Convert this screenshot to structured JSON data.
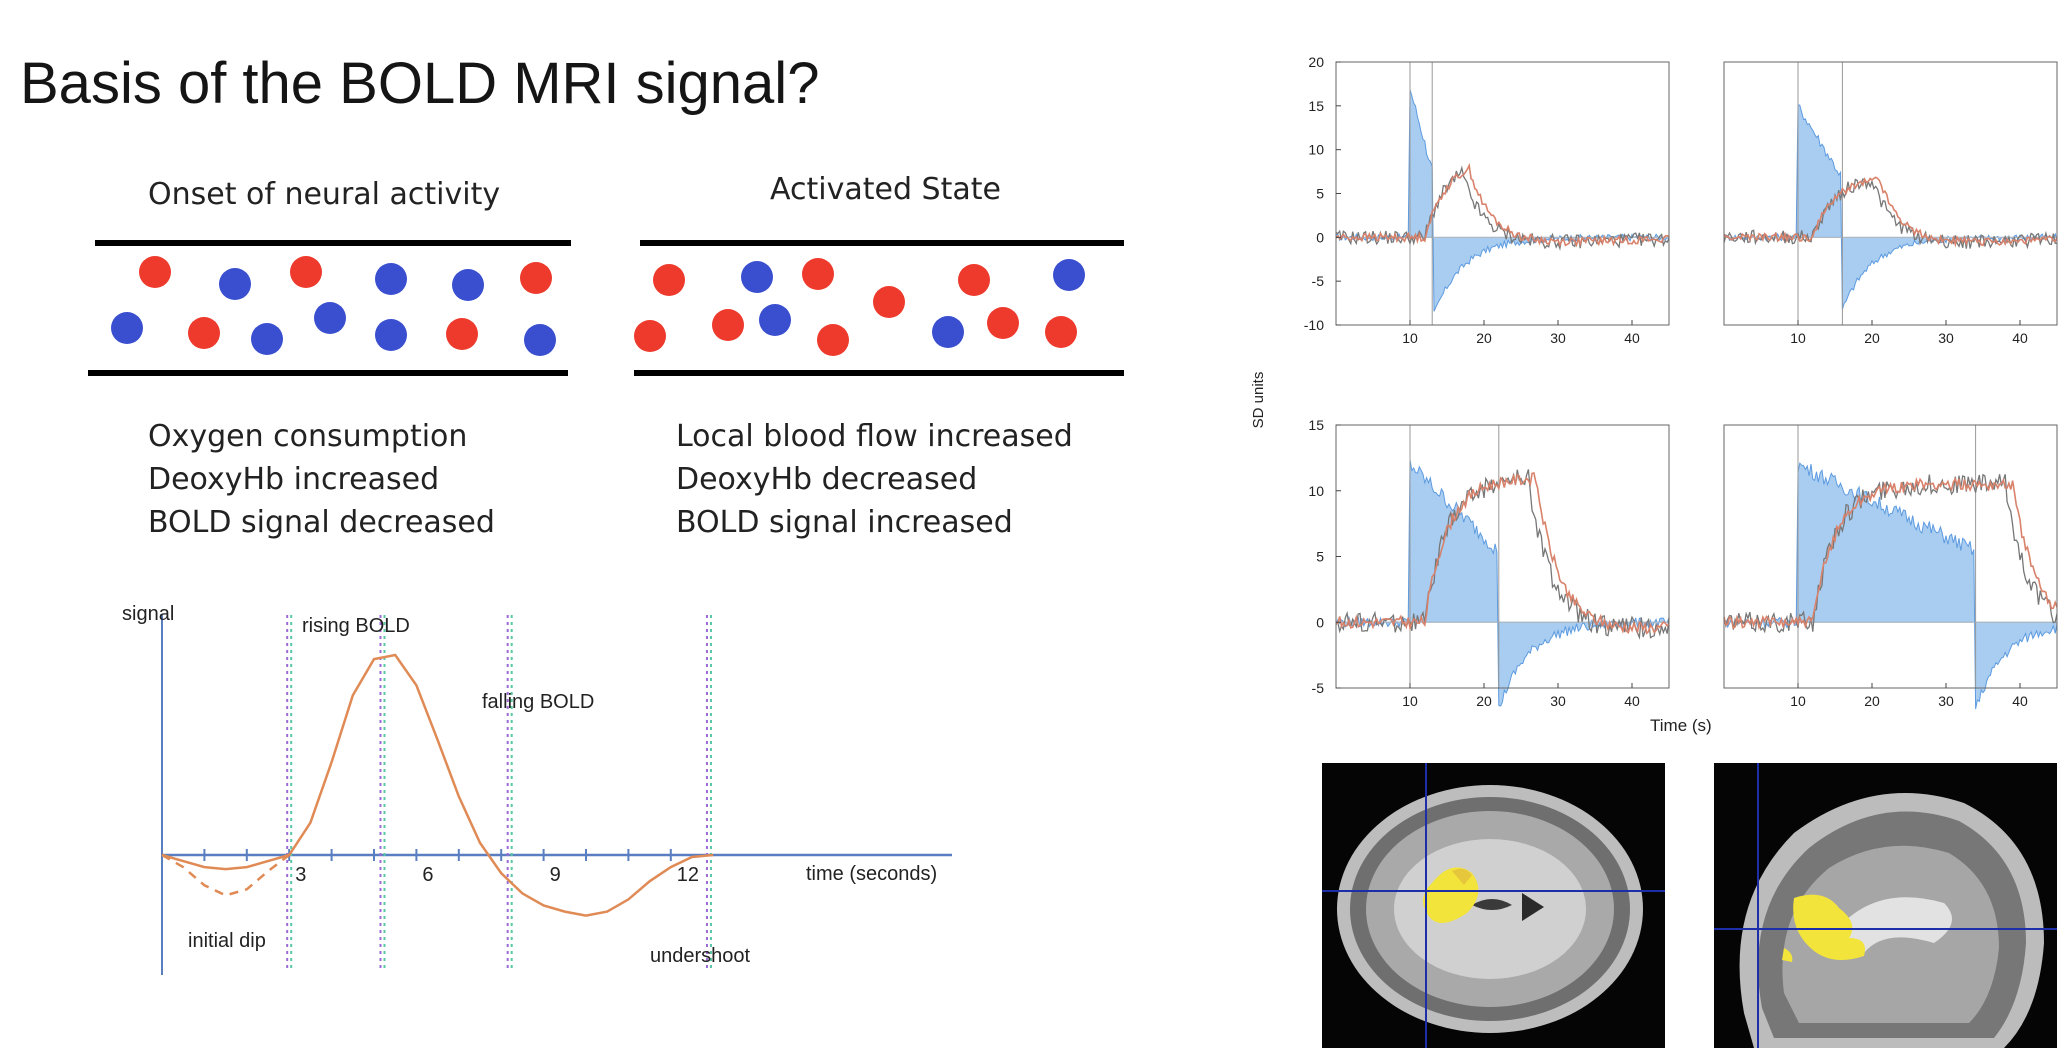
{
  "slide": {
    "title": "Basis of the BOLD MRI signal?"
  },
  "vessels": [
    {
      "title": "Onset of neural activity",
      "lines": [
        "Oxygen consumption",
        "DeoxyHb increased",
        "BOLD signal decreased"
      ]
    },
    {
      "title": "Activated State",
      "lines": [
        "Local blood flow increased",
        "DeoxyHb decreased",
        "BOLD signal increased"
      ]
    }
  ],
  "colors": {
    "oxy": "#ee3a2c",
    "deoxy": "#3a4fcf",
    "bold_curve": "#e08a55",
    "axis": "#5a7fc0",
    "stim_fill": "#a9cdf0",
    "stim_line": "#5d9be0",
    "measured": "#777777",
    "model": "#d9826b"
  },
  "chart_data": [
    {
      "type": "line",
      "title": "",
      "ylabel": "signal",
      "xlabel": "time (seconds)",
      "xlim": [
        0,
        14
      ],
      "x_ticks": [
        3,
        6,
        9,
        12
      ],
      "annotations": [
        "rising BOLD",
        "falling BOLD",
        "initial dip",
        "undershoot"
      ],
      "series": [
        {
          "x": [
            0,
            0.5,
            1,
            1.5,
            2,
            2.5,
            3,
            3.5,
            4,
            4.5,
            5,
            5.5,
            6,
            6.5,
            7,
            7.5,
            8,
            8.5,
            9,
            9.5,
            10,
            10.5,
            11,
            11.5,
            12,
            12.5,
            13
          ],
          "y": [
            0,
            -0.03,
            -0.06,
            -0.07,
            -0.06,
            -0.03,
            0,
            0.16,
            0.46,
            0.79,
            0.97,
            0.99,
            0.84,
            0.57,
            0.29,
            0.06,
            -0.09,
            -0.19,
            -0.25,
            -0.28,
            -0.3,
            -0.28,
            -0.22,
            -0.13,
            -0.06,
            -0.01,
            0
          ]
        },
        {
          "x": [
            0,
            0.5,
            1,
            1.5,
            2,
            2.5,
            3
          ],
          "y": [
            0,
            -0.06,
            -0.15,
            -0.2,
            -0.17,
            -0.08,
            0
          ]
        }
      ]
    },
    {
      "type": "area",
      "ylabel": "SD units",
      "xlabel": "Time  (s)",
      "x_ticks": [
        10,
        20,
        30,
        40
      ],
      "panels": [
        {
          "ylim": [
            -10,
            20
          ],
          "y_ticks": [
            -10,
            -5,
            0,
            5,
            10,
            15,
            20
          ],
          "stim": [
            10,
            13
          ],
          "peak_input": 17,
          "peak_response": 9
        },
        {
          "ylim": [
            -10,
            20
          ],
          "y_ticks": [],
          "stim": [
            10,
            16
          ],
          "peak_input": 15,
          "peak_response": 7
        },
        {
          "ylim": [
            -5,
            15
          ],
          "y_ticks": [
            -5,
            0,
            5,
            10,
            15
          ],
          "stim": [
            10,
            22
          ],
          "peak_input": 12,
          "peak_response": 11
        },
        {
          "ylim": [
            -5,
            15
          ],
          "y_ticks": [],
          "stim": [
            10,
            34
          ],
          "peak_input": 12,
          "peak_response": 10.5
        }
      ]
    }
  ]
}
